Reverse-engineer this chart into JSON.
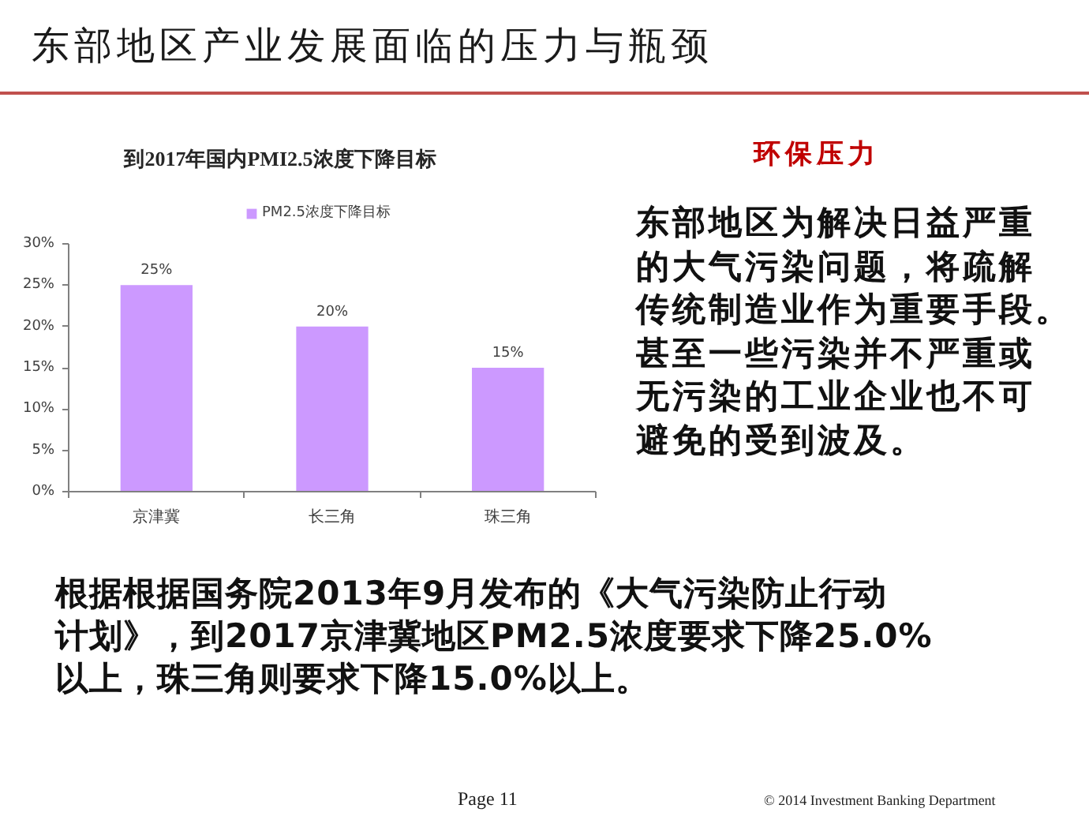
{
  "chart_data": {
    "type": "bar",
    "title": "东部地区产业发展面临的压力与瓶颈",
    "subtitle": "到2017年国内PMI2.5浓度下降目标",
    "categories": [
      "京津冀",
      "长三角",
      "珠三角"
    ],
    "series": [
      {
        "name": "PM2.5浓度下降目标",
        "color": "#cc99ff",
        "values": [
          25,
          20,
          15
        ],
        "value_labels": [
          "25%",
          "20%",
          "15%"
        ]
      }
    ],
    "ylim": [
      0,
      30
    ],
    "yticks": [
      {
        "value": 0,
        "label": "0%"
      },
      {
        "value": 5,
        "label": "5%"
      },
      {
        "value": 10,
        "label": "10%"
      },
      {
        "value": 15,
        "label": "15%"
      },
      {
        "value": 20,
        "label": "20%"
      },
      {
        "value": 25,
        "label": "25%"
      },
      {
        "value": 30,
        "label": "30%"
      }
    ],
    "grid": false,
    "legend": "top",
    "annotations": [
      "环保压力",
      "东部地区为解决日益严重的大气污染问题，将疏解传统制造业作为重要手段。甚至一些污染并不严重或无污染的工业企业也不可避免的受到波及。",
      "根据根据国务院2013年9月发布的《大气污染防止行动计划》，到2017京津冀地区PM2.5浓度要求下降25.0%以上，珠三角则要求下降15.0%以上。",
      "Page 11",
      "© 2014 Investment Banking Department"
    ]
  }
}
